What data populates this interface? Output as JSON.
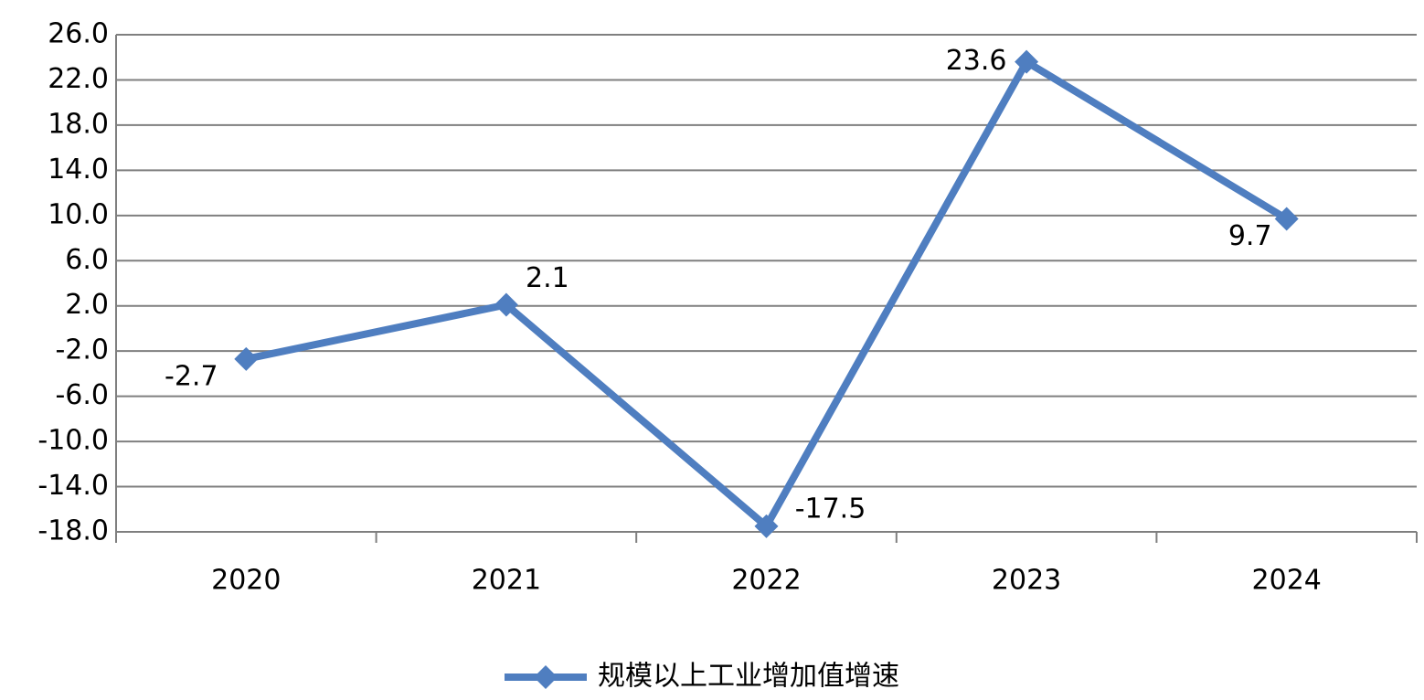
{
  "chart_data": {
    "type": "line",
    "categories": [
      "2020",
      "2021",
      "2022",
      "2023",
      "2024"
    ],
    "series": [
      {
        "name": "规模以上工业增加值增速",
        "color": "#4f7ec0",
        "values": [
          -2.7,
          2.1,
          -17.5,
          23.6,
          9.7
        ]
      }
    ],
    "ylim": [
      -18,
      26
    ],
    "yticks": [
      {
        "value": -18,
        "label": "-18.0"
      },
      {
        "value": -14,
        "label": "-14.0"
      },
      {
        "value": -10,
        "label": "-10.0"
      },
      {
        "value": -6,
        "label": "-6.0"
      },
      {
        "value": -2,
        "label": "-2.0"
      },
      {
        "value": 2,
        "label": "2.0"
      },
      {
        "value": 6,
        "label": "6.0"
      },
      {
        "value": 10,
        "label": "10.0"
      },
      {
        "value": 14,
        "label": "14.0"
      },
      {
        "value": 18,
        "label": "18.0"
      },
      {
        "value": 22,
        "label": "22.0"
      },
      {
        "value": 26,
        "label": "26.0"
      }
    ],
    "grid": true,
    "legend": "bottom"
  }
}
